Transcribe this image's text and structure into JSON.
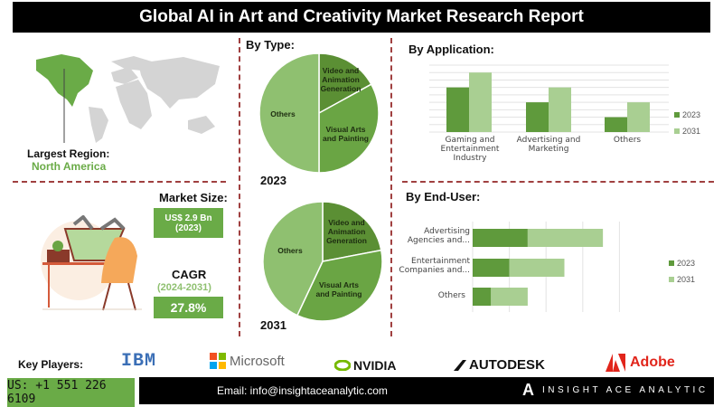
{
  "title": "Global AI in Art and Creativity Market Research Report",
  "region": {
    "label": "Largest Region:",
    "value": "North America"
  },
  "market_size": {
    "label": "Market Size:",
    "value": "US$ 2.9 Bn",
    "year": "(2023)"
  },
  "cagr": {
    "label": "CAGR",
    "period": "(2024-2031)",
    "value": "27.8%"
  },
  "colors": {
    "accent": "#6aab47",
    "dark_green": "#5b8f34",
    "mid_green": "#6aa544",
    "light_green": "#8fc070",
    "bar_2023": "#5f9a3c",
    "bar_2031": "#a9cf92",
    "divider": "#a04040"
  },
  "chart_data": [
    {
      "type": "pie",
      "title": "By Type:",
      "caption": "2023",
      "labels": [
        "Video and Animation Generation",
        "Visual Arts and Painting",
        "Others"
      ],
      "values": [
        17,
        33,
        50
      ]
    },
    {
      "type": "pie",
      "caption": "2031",
      "labels": [
        "Video and Animation Generation",
        "Visual Arts and Painting",
        "Others"
      ],
      "values": [
        22,
        35,
        43
      ]
    },
    {
      "type": "bar",
      "title": "By Application:",
      "categories": [
        "Gaming and Entertainment Industry",
        "Advertising and Marketing",
        "Others"
      ],
      "series": [
        {
          "name": "2023",
          "values": [
            6,
            4,
            2
          ]
        },
        {
          "name": "2031",
          "values": [
            8,
            6,
            4
          ]
        }
      ],
      "ylim": [
        0,
        9
      ],
      "grid": true,
      "legend": "right"
    },
    {
      "type": "bar",
      "orientation": "horizontal",
      "stacked": true,
      "title": "By End-User:",
      "categories": [
        "Advertising Agencies and...",
        "Entertainment Companies and...",
        "Others"
      ],
      "series": [
        {
          "name": "2023",
          "values": [
            1.5,
            1.0,
            0.5
          ]
        },
        {
          "name": "2031",
          "values": [
            2.05,
            1.5,
            1.0
          ]
        }
      ],
      "xlim": [
        0,
        4
      ],
      "grid": true,
      "legend": "right"
    }
  ],
  "footer": {
    "key_players_label": "Key Players:",
    "players": [
      "IBM",
      "Microsoft",
      "NVIDIA",
      "AUTODESK",
      "Adobe"
    ],
    "phone": "US: +1 551 226 6109",
    "email": "Email: info@insightaceanalytic.com",
    "brand": "INSIGHT ACE ANALYTIC"
  }
}
